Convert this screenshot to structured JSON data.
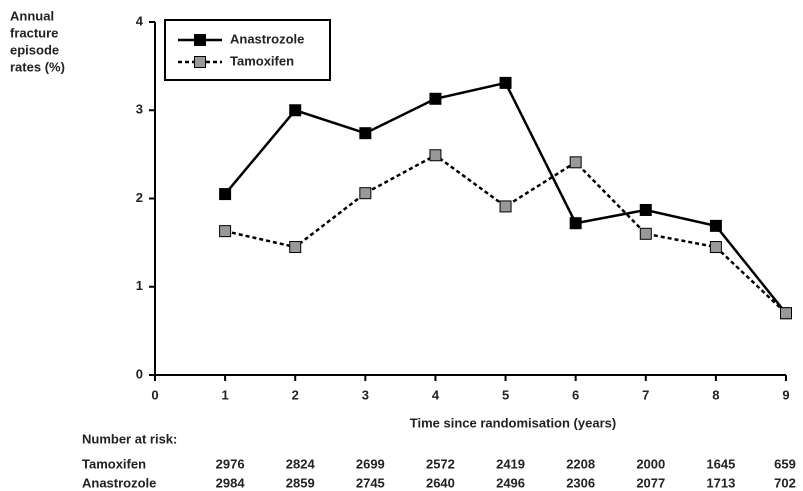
{
  "chart_data": {
    "type": "line",
    "ylabel": [
      "Annual",
      "fracture",
      "episode",
      "rates (%)"
    ],
    "xlabel": "Time since randomisation (years)",
    "x": [
      1,
      2,
      3,
      4,
      5,
      6,
      7,
      8,
      9
    ],
    "series": [
      {
        "name": "Anastrozole",
        "color": "#000000",
        "line_style": "solid",
        "values": [
          2.05,
          3.0,
          2.74,
          3.13,
          3.31,
          1.72,
          1.87,
          1.69,
          0.7
        ]
      },
      {
        "name": "Tamoxifen",
        "color": "#999999",
        "line_style": "dotted",
        "values": [
          1.63,
          1.45,
          2.06,
          2.49,
          1.91,
          2.41,
          1.6,
          1.45,
          0.7
        ]
      }
    ],
    "xlim": [
      0,
      9
    ],
    "xticks": [
      0,
      1,
      2,
      3,
      4,
      5,
      6,
      7,
      8,
      9
    ],
    "ylim": [
      0,
      4
    ],
    "yticks": [
      0,
      1,
      2,
      3,
      4
    ],
    "grid": false,
    "legend": "upper left"
  },
  "risk_table": {
    "title": "Number at risk:",
    "rows": [
      {
        "name": "Tamoxifen",
        "values": [
          "2976",
          "2824",
          "2699",
          "2572",
          "2419",
          "2208",
          "2000",
          "1645",
          "659"
        ]
      },
      {
        "name": "Anastrozole",
        "values": [
          "2984",
          "2859",
          "2745",
          "2640",
          "2496",
          "2306",
          "2077",
          "1713",
          "702"
        ]
      }
    ]
  }
}
